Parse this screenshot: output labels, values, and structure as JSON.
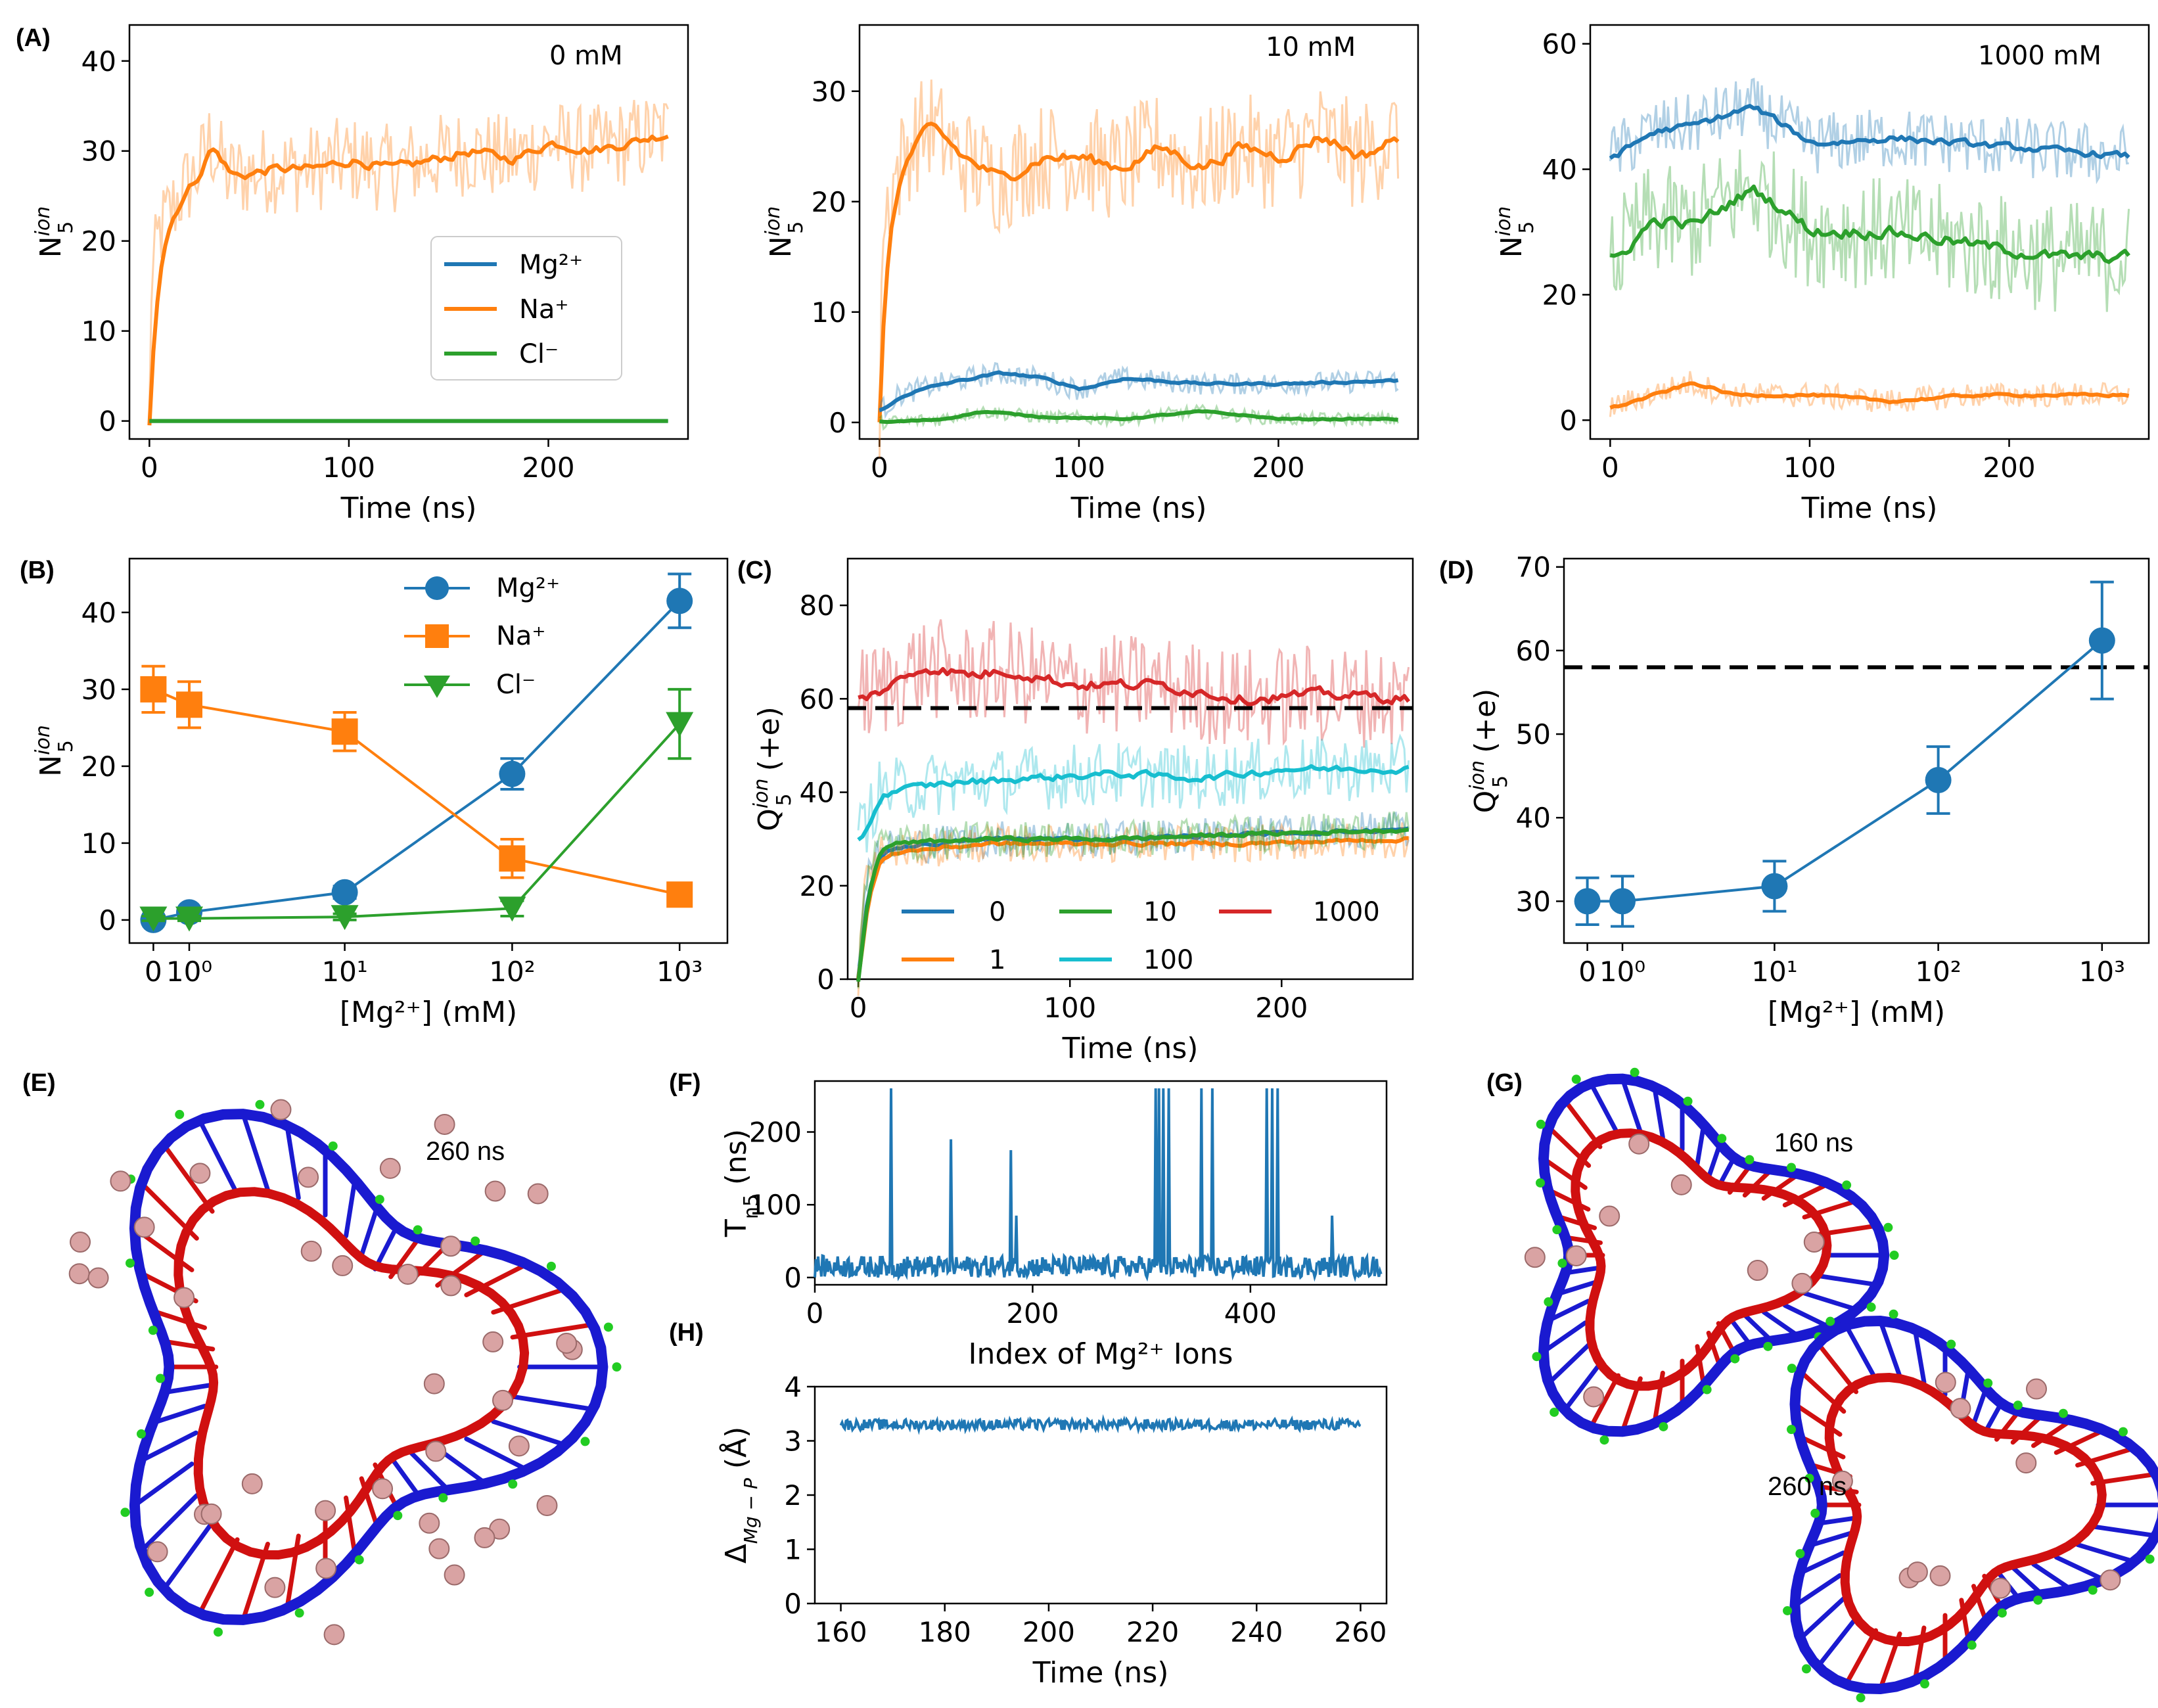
{
  "colors": {
    "Mg": "#1f77b4",
    "Na": "#ff7f0e",
    "Cl": "#2ca02c",
    "c0": "#1f77b4",
    "c1": "#ff7f0e",
    "c10": "#2ca02c",
    "c100": "#17becf",
    "c1000": "#d62728"
  },
  "labels": {
    "A": "(A)",
    "B": "(B)",
    "C": "(C)",
    "D": "(D)",
    "E": "(E)",
    "F": "(F)",
    "G": "(G)",
    "H": "(H)"
  },
  "ion_labels": {
    "Mg": "Mg²⁺",
    "Na": "Na⁺",
    "Cl": "Cl⁻"
  },
  "snapshots": {
    "E_time": "260 ns",
    "G_time1": "160 ns",
    "G_time2": "260 ns"
  },
  "chart_data": [
    {
      "id": "A1",
      "type": "line",
      "annotation": "0 mM",
      "xlabel": "Time (ns)",
      "ylabel": "N5ion",
      "xlim": [
        -10,
        270
      ],
      "ylim": [
        -2,
        44
      ],
      "xticks": [
        0,
        100,
        200
      ],
      "yticks": [
        0,
        10,
        20,
        30,
        40
      ],
      "legend": [
        "Mg²⁺",
        "Na⁺",
        "Cl⁻"
      ],
      "series": [
        {
          "name": "Na⁺",
          "color": "#ff7f0e",
          "mean": [
            [
              0,
              0
            ],
            [
              1,
              15
            ],
            [
              5,
              21
            ],
            [
              15,
              25
            ],
            [
              25,
              28
            ],
            [
              30,
              31
            ],
            [
              40,
              27
            ],
            [
              60,
              28
            ],
            [
              80,
              28
            ],
            [
              100,
              29
            ],
            [
              120,
              28
            ],
            [
              140,
              29
            ],
            [
              160,
              30
            ],
            [
              180,
              29
            ],
            [
              200,
              31
            ],
            [
              220,
              30
            ],
            [
              240,
              31
            ],
            [
              260,
              32
            ]
          ],
          "noise": 5
        },
        {
          "name": "Mg²⁺",
          "color": "#1f77b4",
          "mean": [
            [
              0,
              0
            ],
            [
              260,
              0
            ]
          ],
          "noise": 0
        },
        {
          "name": "Cl⁻",
          "color": "#2ca02c",
          "mean": [
            [
              0,
              0
            ],
            [
              260,
              0
            ]
          ],
          "noise": 0
        }
      ]
    },
    {
      "id": "A2",
      "type": "line",
      "annotation": "10 mM",
      "xlabel": "Time (ns)",
      "ylabel": "N5ion",
      "xlim": [
        -10,
        270
      ],
      "ylim": [
        -1.5,
        36
      ],
      "xticks": [
        0,
        100,
        200
      ],
      "yticks": [
        0,
        10,
        20,
        30
      ],
      "series": [
        {
          "name": "Na⁺",
          "color": "#ff7f0e",
          "mean": [
            [
              0,
              0
            ],
            [
              1,
              15
            ],
            [
              5,
              21
            ],
            [
              15,
              25
            ],
            [
              25,
              27
            ],
            [
              40,
              24
            ],
            [
              60,
              22
            ],
            [
              80,
              24
            ],
            [
              100,
              24
            ],
            [
              120,
              23
            ],
            [
              140,
              25
            ],
            [
              160,
              23
            ],
            [
              180,
              25
            ],
            [
              200,
              24
            ],
            [
              220,
              26
            ],
            [
              240,
              24
            ],
            [
              260,
              26
            ]
          ],
          "noise": 5
        },
        {
          "name": "Mg²⁺",
          "color": "#1f77b4",
          "mean": [
            [
              0,
              1
            ],
            [
              10,
              2.5
            ],
            [
              30,
              3.5
            ],
            [
              60,
              4.5
            ],
            [
              80,
              4
            ],
            [
              100,
              3
            ],
            [
              120,
              4
            ],
            [
              160,
              3.5
            ],
            [
              200,
              3.5
            ],
            [
              260,
              3.8
            ]
          ],
          "noise": 1
        },
        {
          "name": "Cl⁻",
          "color": "#2ca02c",
          "mean": [
            [
              0,
              0
            ],
            [
              30,
              0.3
            ],
            [
              50,
              1
            ],
            [
              80,
              0.5
            ],
            [
              120,
              0.3
            ],
            [
              160,
              1
            ],
            [
              200,
              0.3
            ],
            [
              260,
              0.3
            ]
          ],
          "noise": 0.6
        }
      ]
    },
    {
      "id": "A3",
      "type": "line",
      "annotation": "1000 mM",
      "xlabel": "Time (ns)",
      "ylabel": "N5ion",
      "xlim": [
        -10,
        270
      ],
      "ylim": [
        -3,
        63
      ],
      "xticks": [
        0,
        100,
        200
      ],
      "yticks": [
        0,
        20,
        40,
        60
      ],
      "series": [
        {
          "name": "Mg²⁺",
          "color": "#1f77b4",
          "mean": [
            [
              0,
              42
            ],
            [
              20,
              46
            ],
            [
              40,
              47
            ],
            [
              70,
              50
            ],
            [
              100,
              44
            ],
            [
              140,
              45
            ],
            [
              180,
              44
            ],
            [
              220,
              43
            ],
            [
              260,
              42
            ]
          ],
          "noise": 5
        },
        {
          "name": "Cl⁻",
          "color": "#2ca02c",
          "mean": [
            [
              0,
              25
            ],
            [
              20,
              32
            ],
            [
              40,
              31
            ],
            [
              70,
              37
            ],
            [
              100,
              30
            ],
            [
              140,
              30
            ],
            [
              180,
              28
            ],
            [
              220,
              26
            ],
            [
              260,
              26
            ]
          ],
          "noise": 9
        },
        {
          "name": "Na⁺",
          "color": "#ff7f0e",
          "mean": [
            [
              0,
              2
            ],
            [
              20,
              4
            ],
            [
              40,
              6
            ],
            [
              60,
              4
            ],
            [
              100,
              4
            ],
            [
              140,
              3
            ],
            [
              180,
              4
            ],
            [
              220,
              4
            ],
            [
              260,
              4
            ]
          ],
          "noise": 2
        }
      ]
    },
    {
      "id": "B",
      "type": "line",
      "xlabel": "[Mg²⁺] (mM)",
      "ylabel": "N5ion",
      "xtick_labels": [
        "0",
        "10⁰",
        "10¹",
        "10²",
        "10³"
      ],
      "ylim": [
        -3,
        47
      ],
      "yticks": [
        0,
        10,
        20,
        30,
        40
      ],
      "legend": [
        "Mg²⁺",
        "Na⁺",
        "Cl⁻"
      ],
      "series": [
        {
          "name": "Mg²⁺",
          "color": "#1f77b4",
          "marker": "circle",
          "values": [
            0,
            1,
            3.6,
            19,
            41.5
          ],
          "errors": [
            0.3,
            0.5,
            0.8,
            2,
            3.5
          ]
        },
        {
          "name": "Na⁺",
          "color": "#ff7f0e",
          "marker": "square",
          "values": [
            30,
            28,
            24.5,
            8,
            3.3
          ],
          "errors": [
            3,
            3,
            2.5,
            2.5,
            0.5
          ]
        },
        {
          "name": "Cl⁻",
          "color": "#2ca02c",
          "marker": "triangle-down",
          "values": [
            0.2,
            0.2,
            0.4,
            1.5,
            25.5
          ],
          "errors": [
            0.3,
            0.3,
            0.4,
            1,
            4.5
          ]
        }
      ]
    },
    {
      "id": "C",
      "type": "line",
      "xlabel": "Time (ns)",
      "ylabel": "Q5ion (+e)",
      "xlim": [
        -5,
        262
      ],
      "ylim": [
        0,
        90
      ],
      "xticks": [
        0,
        100,
        200
      ],
      "yticks": [
        0,
        20,
        40,
        60,
        80
      ],
      "reference_line": 58,
      "legend": [
        "0",
        "1",
        "10",
        "100",
        "1000"
      ],
      "series": [
        {
          "name": "1000",
          "color": "#d62728",
          "mean": [
            [
              0,
              60
            ],
            [
              10,
              62
            ],
            [
              30,
              67
            ],
            [
              50,
              65
            ],
            [
              70,
              66
            ],
            [
              100,
              63
            ],
            [
              140,
              63
            ],
            [
              180,
              60
            ],
            [
              220,
              61
            ],
            [
              260,
              60
            ]
          ],
          "noise": 11
        },
        {
          "name": "100",
          "color": "#17becf",
          "mean": [
            [
              0,
              30
            ],
            [
              10,
              40
            ],
            [
              40,
              42
            ],
            [
              80,
              43
            ],
            [
              120,
              44
            ],
            [
              160,
              43
            ],
            [
              200,
              45
            ],
            [
              260,
              45
            ]
          ],
          "noise": 7
        },
        {
          "name": "0",
          "color": "#1f77b4",
          "mean": [
            [
              0,
              0
            ],
            [
              3,
              22
            ],
            [
              10,
              28
            ],
            [
              60,
              30
            ],
            [
              120,
              30
            ],
            [
              180,
              31
            ],
            [
              260,
              32
            ]
          ],
          "noise": 4
        },
        {
          "name": "1",
          "color": "#ff7f0e",
          "mean": [
            [
              0,
              0
            ],
            [
              3,
              20
            ],
            [
              10,
              27
            ],
            [
              60,
              29
            ],
            [
              120,
              29
            ],
            [
              180,
              29
            ],
            [
              260,
              30
            ]
          ],
          "noise": 4
        },
        {
          "name": "10",
          "color": "#2ca02c",
          "mean": [
            [
              0,
              0
            ],
            [
              3,
              22
            ],
            [
              10,
              29
            ],
            [
              60,
              30
            ],
            [
              120,
              30
            ],
            [
              180,
              31
            ],
            [
              260,
              32
            ]
          ],
          "noise": 4
        }
      ]
    },
    {
      "id": "D",
      "type": "line",
      "xlabel": "[Mg²⁺] (mM)",
      "ylabel": "Q5ion (+e)",
      "xtick_labels": [
        "0",
        "10⁰",
        "10¹",
        "10²",
        "10³"
      ],
      "ylim": [
        25,
        71
      ],
      "yticks": [
        30,
        40,
        50,
        60,
        70
      ],
      "reference_line": 58,
      "series": [
        {
          "name": "Q",
          "color": "#1f77b4",
          "marker": "circle",
          "values": [
            30,
            30,
            31.8,
            44.5,
            61.2
          ],
          "errors": [
            2.8,
            3,
            3,
            4,
            7
          ]
        }
      ]
    },
    {
      "id": "F",
      "type": "line",
      "xlabel": "Index of Mg²⁺ Ions",
      "ylabel": "Tn5 (ns)",
      "xlim": [
        0,
        525
      ],
      "ylim": [
        -10,
        270
      ],
      "xticks": [
        0,
        200,
        400
      ],
      "yticks": [
        0,
        100,
        200
      ],
      "spikes": [
        [
          70,
          260
        ],
        [
          125,
          190
        ],
        [
          180,
          175
        ],
        [
          185,
          85
        ],
        [
          313,
          260
        ],
        [
          316,
          260
        ],
        [
          320,
          260
        ],
        [
          325,
          260
        ],
        [
          355,
          260
        ],
        [
          365,
          260
        ],
        [
          415,
          260
        ],
        [
          420,
          260
        ],
        [
          425,
          260
        ],
        [
          475,
          85
        ]
      ],
      "baseline": 15,
      "noise": 15
    },
    {
      "id": "H",
      "type": "line",
      "xlabel": "Time (ns)",
      "ylabel": "ΔMg−P (Å)",
      "xlim": [
        155,
        265
      ],
      "ylim": [
        0,
        4
      ],
      "xticks": [
        160,
        180,
        200,
        220,
        240,
        260
      ],
      "yticks": [
        0,
        1,
        2,
        3,
        4
      ],
      "baseline": 3.3,
      "noise": 0.1
    }
  ]
}
